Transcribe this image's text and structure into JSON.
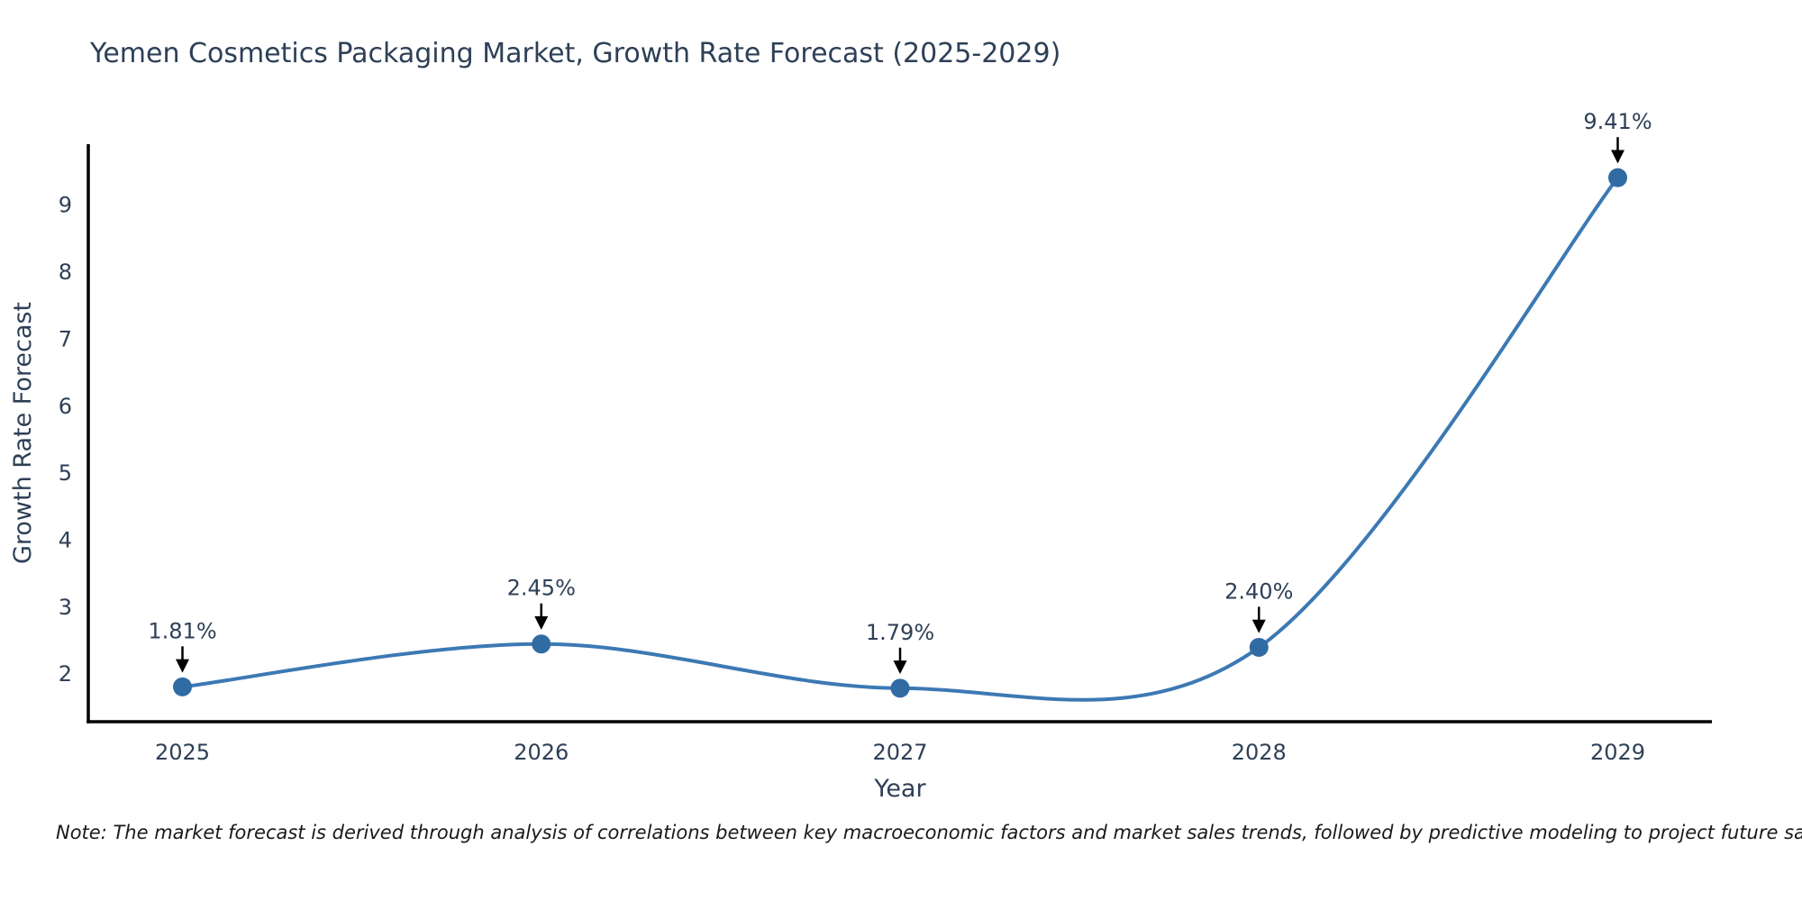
{
  "title": "Yemen Cosmetics Packaging Market, Growth Rate Forecast (2025-2029)",
  "note": "Note: The market forecast is derived through analysis of correlations between key macroeconomic factors and market sales trends, followed by predictive modeling to project future sales.",
  "chart_data": {
    "type": "line",
    "title": "Yemen Cosmetics Packaging Market, Growth Rate Forecast (2025-2029)",
    "x": [
      "2025",
      "2026",
      "2027",
      "2028",
      "2029"
    ],
    "series": [
      {
        "name": "Growth Rate Forecast",
        "values": [
          1.81,
          2.45,
          1.79,
          2.4,
          9.41
        ]
      }
    ],
    "point_labels": [
      "1.81%",
      "2.45%",
      "1.79%",
      "2.40%",
      "9.41%"
    ],
    "xlabel": "Year",
    "ylabel": "Growth Rate Forecast",
    "ylim": [
      1.29,
      9.91
    ],
    "y_ticks": [
      2,
      3,
      4,
      5,
      6,
      7,
      8,
      9
    ],
    "grid": false,
    "legend": "none",
    "line_shape": "spline",
    "colors": {
      "line": "#3c79b4",
      "marker": "#306ba4",
      "axis": "#000000",
      "text": "#2e4057",
      "arrow": "#000000",
      "background": "#ffffff"
    }
  }
}
